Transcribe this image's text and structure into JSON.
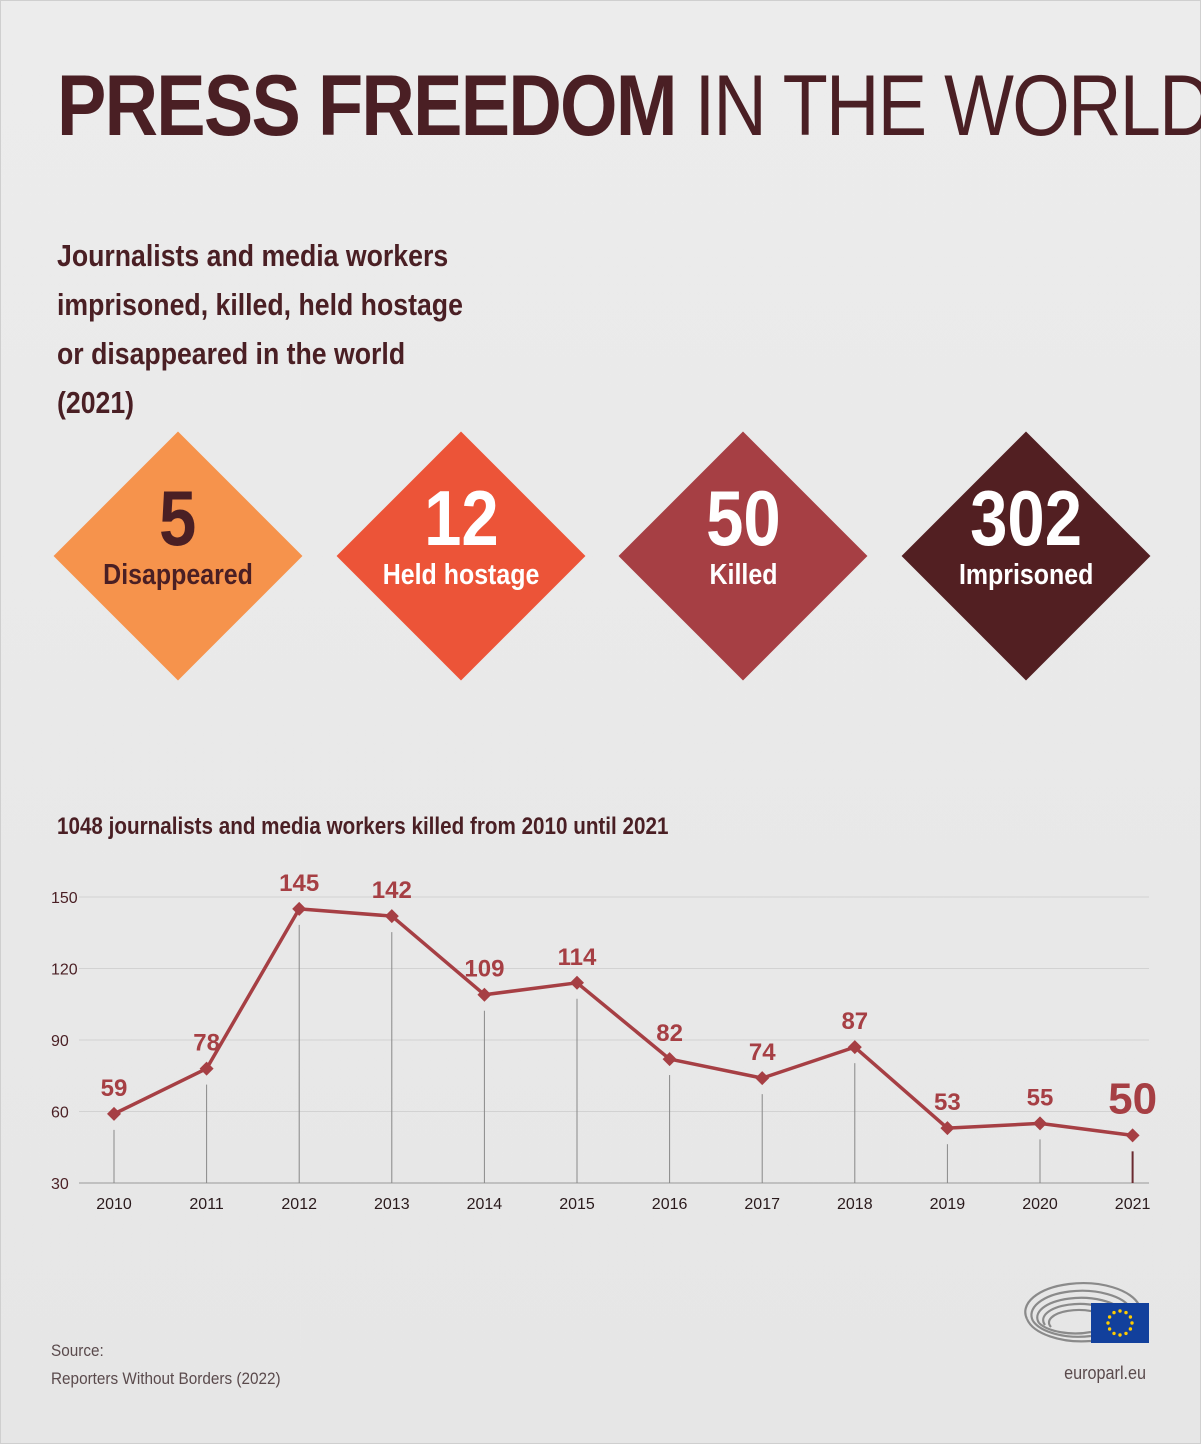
{
  "header": {
    "title_bold": "PRESS FREEDOM",
    "title_thin": "IN THE WORLD",
    "subtitle_lines": [
      "Journalists and media workers",
      "imprisoned, killed, held hostage",
      "or disappeared in the world",
      "(2021)"
    ]
  },
  "stats": [
    {
      "value": "5",
      "label": "Disappeared",
      "color": "#f6934c",
      "text_color": "#4a1f24"
    },
    {
      "value": "12",
      "label": "Held hostage",
      "color": "#ec5438",
      "text_color": "#ffffff"
    },
    {
      "value": "50",
      "label": "Killed",
      "color": "#a63f44",
      "text_color": "#ffffff"
    },
    {
      "value": "302",
      "label": "Imprisoned",
      "color": "#521f22",
      "text_color": "#ffffff"
    }
  ],
  "chart_data": {
    "type": "line",
    "title": "1048 journalists and media workers killed from 2010 until 2021",
    "x": [
      "2010",
      "2011",
      "2012",
      "2013",
      "2014",
      "2015",
      "2016",
      "2017",
      "2018",
      "2019",
      "2020",
      "2021"
    ],
    "values": [
      59,
      78,
      145,
      142,
      109,
      114,
      82,
      74,
      87,
      53,
      55,
      50
    ],
    "yticks": [
      30,
      60,
      90,
      120,
      150
    ],
    "ylim": [
      30,
      150
    ],
    "grid": true,
    "line_color": "#a63f44",
    "highlight_last": true
  },
  "footer": {
    "source_label": "Source:",
    "source_text": "Reporters Without Borders (2022)",
    "site": "europarl.eu"
  }
}
